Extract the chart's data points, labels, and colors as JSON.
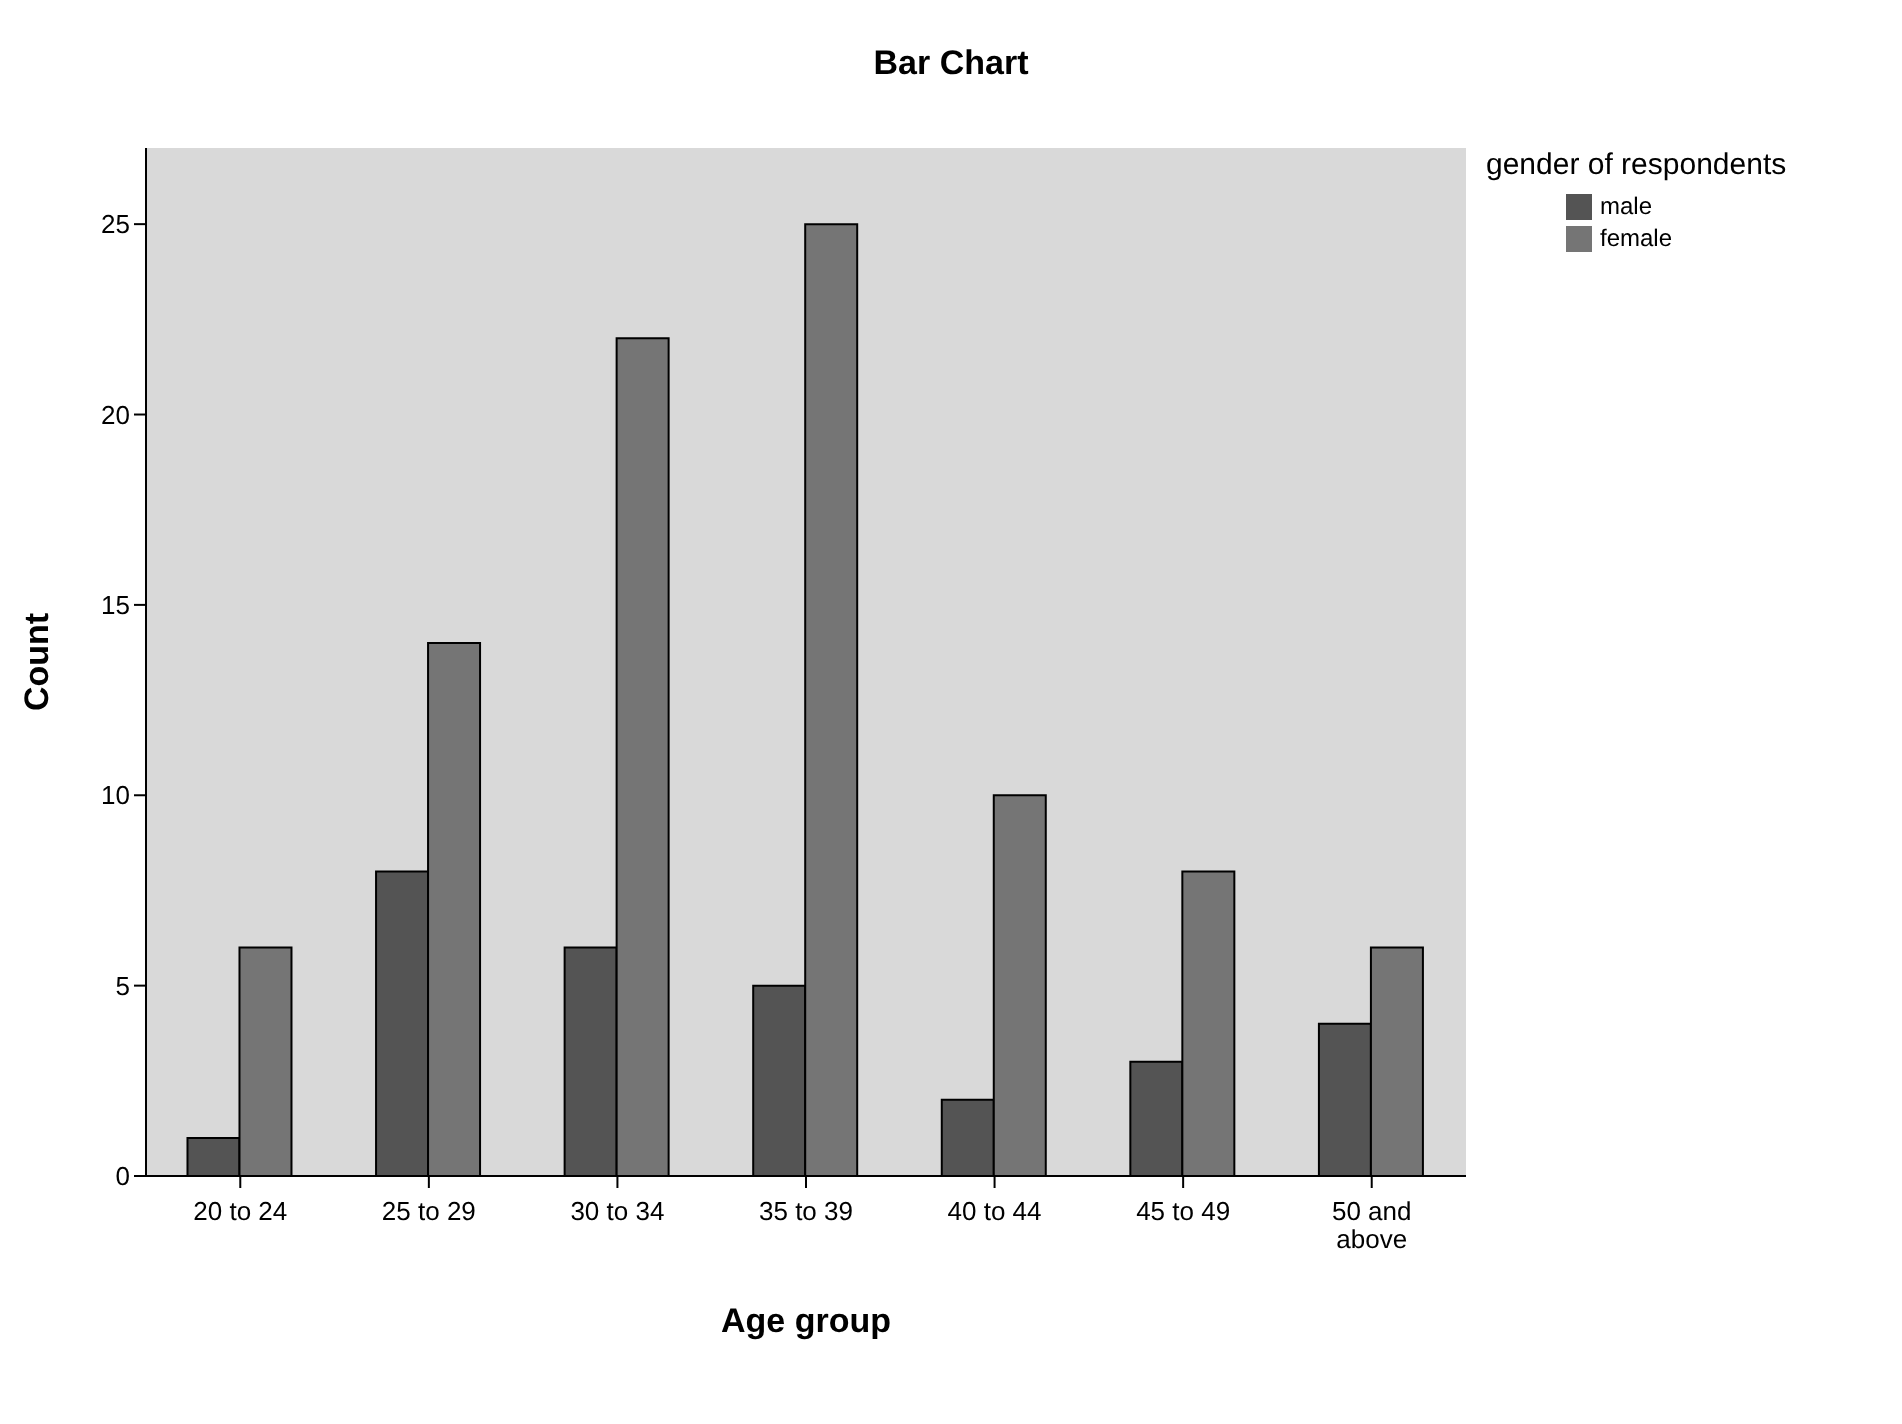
{
  "chart_data": {
    "type": "bar",
    "title": "Bar Chart",
    "xlabel": "Age group",
    "ylabel": "Count",
    "legend_title": "gender of respondents",
    "categories": [
      "20 to 24",
      "25 to 29",
      "30 to 34",
      "35 to 39",
      "40 to 44",
      "45 to 49",
      "50 and above"
    ],
    "series": [
      {
        "name": "male",
        "color": "#545454",
        "values": [
          1,
          8,
          6,
          5,
          2,
          3,
          4
        ]
      },
      {
        "name": "female",
        "color": "#757575",
        "values": [
          6,
          14,
          22,
          25,
          10,
          8,
          6
        ]
      }
    ],
    "ylim": [
      0,
      27
    ],
    "yticks": [
      0,
      5,
      10,
      15,
      20,
      25
    ],
    "grid": false,
    "legend": "top right"
  }
}
